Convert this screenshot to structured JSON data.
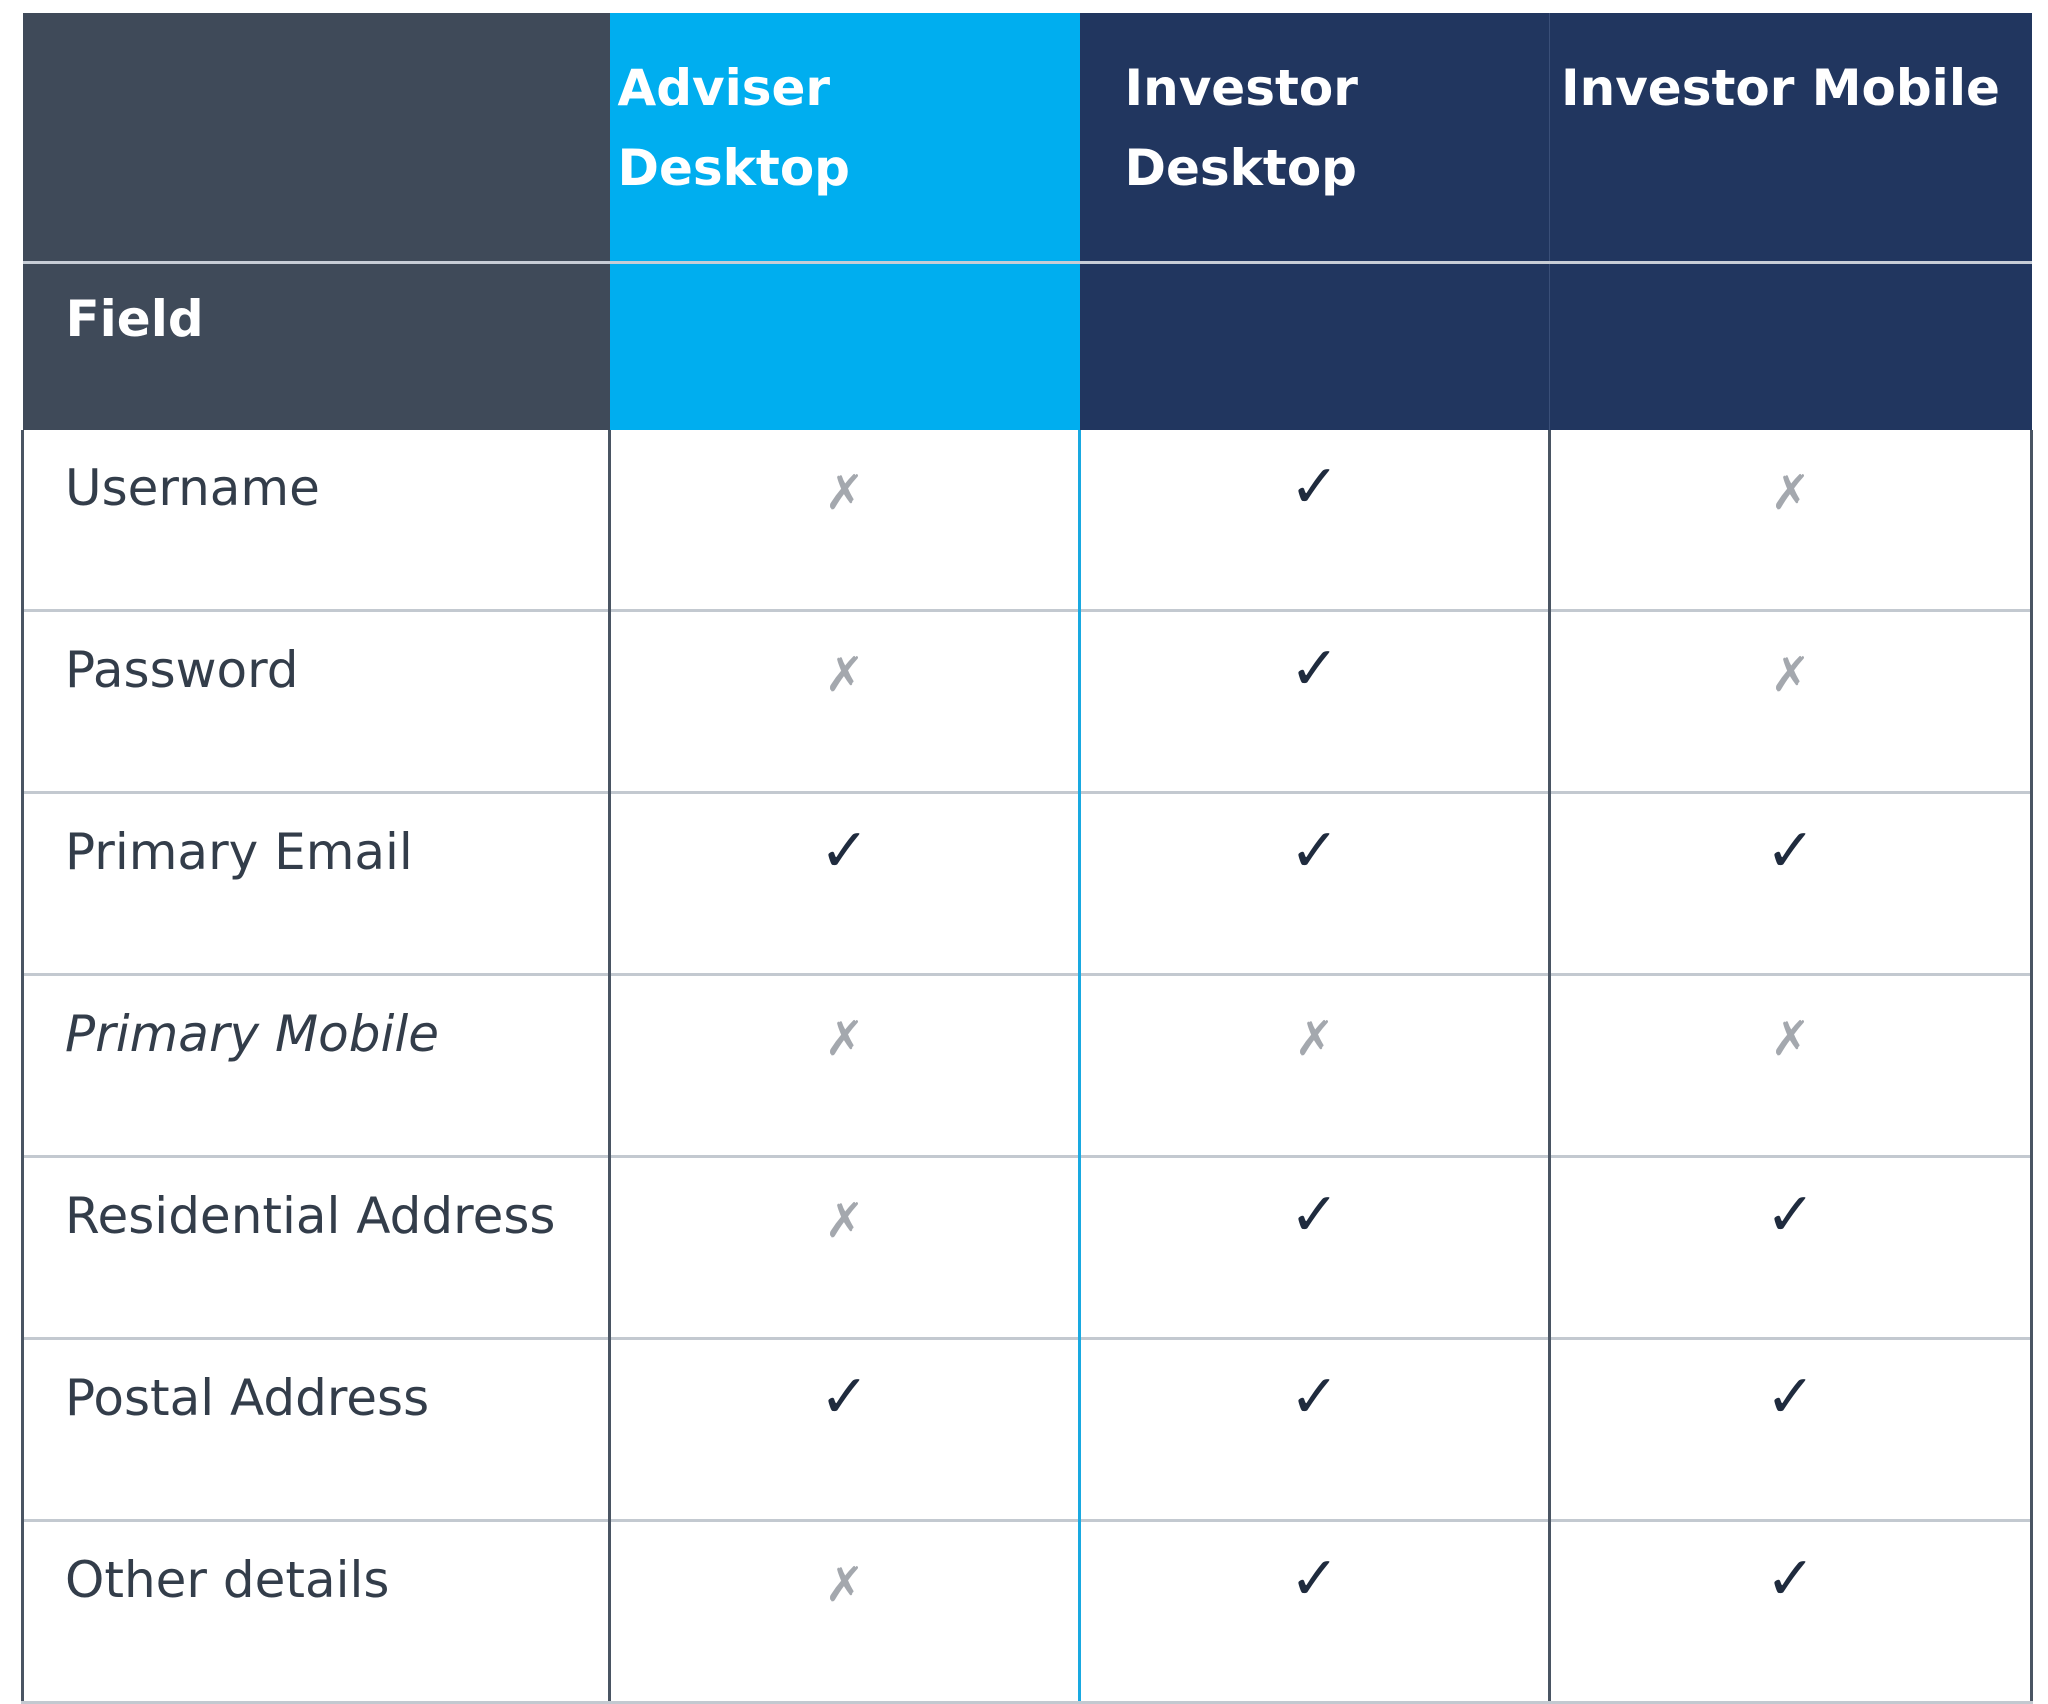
{
  "table": {
    "columns": {
      "field": "Field",
      "adviser_desktop": "Adviser Desktop",
      "investor_desktop": "Investor Desktop",
      "investor_mobile": "Investor Mobile"
    },
    "symbols": {
      "yes": "✓",
      "no": "✗"
    },
    "rows": [
      {
        "field": "Username",
        "italic": false,
        "adviser_desktop": "✗",
        "investor_desktop": "✓",
        "investor_mobile": "✗"
      },
      {
        "field": "Password",
        "italic": false,
        "adviser_desktop": "✗",
        "investor_desktop": "✓",
        "investor_mobile": "✗"
      },
      {
        "field": "Primary Email",
        "italic": false,
        "adviser_desktop": "✓",
        "investor_desktop": "✓",
        "investor_mobile": "✓"
      },
      {
        "field": "Primary Mobile",
        "italic": true,
        "adviser_desktop": "✗",
        "investor_desktop": "✗",
        "investor_mobile": "✗"
      },
      {
        "field": "Residential Address",
        "italic": false,
        "adviser_desktop": "✗",
        "investor_desktop": "✓",
        "investor_mobile": "✓"
      },
      {
        "field": "Postal Address",
        "italic": false,
        "adviser_desktop": "✓",
        "investor_desktop": "✓",
        "investor_mobile": "✓"
      },
      {
        "field": "Other details",
        "italic": false,
        "adviser_desktop": "✗",
        "investor_desktop": "✓",
        "investor_mobile": "✓"
      }
    ],
    "colors": {
      "field_header_bg": "#3f4a59",
      "adviser_header_bg": "#00aeef",
      "investor_header_bg": "#21365f",
      "check": "#1f2b3e",
      "cross": "#a4a8ae"
    }
  }
}
